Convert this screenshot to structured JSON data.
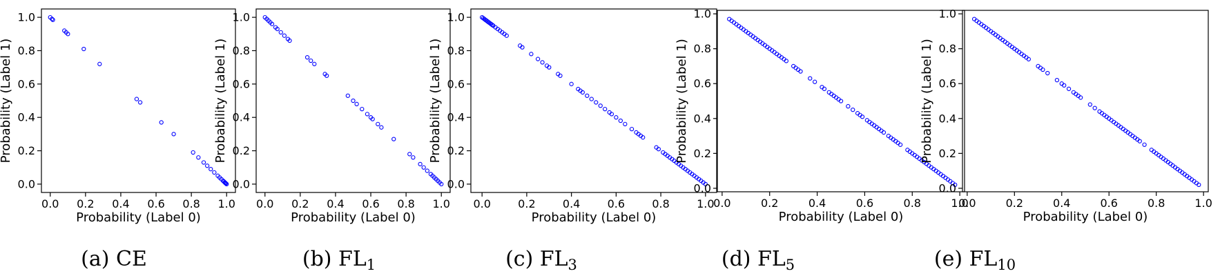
{
  "chart_data": [
    {
      "type": "scatter",
      "caption": "(a) CE",
      "xlabel": "Probability (Label 0)",
      "ylabel": "Probability (Label 1)",
      "xlim": [
        -0.05,
        1.05
      ],
      "ylim": [
        -0.05,
        1.05
      ],
      "xticks": [
        "0.0",
        "0.2",
        "0.4",
        "0.6",
        "0.8",
        "1.0"
      ],
      "yticks": [
        "0.0",
        "0.2",
        "0.4",
        "0.6",
        "0.8",
        "1.0"
      ],
      "grid": false,
      "marker_color": "#0000ff",
      "x": [
        0.0,
        0.01,
        0.015,
        0.08,
        0.09,
        0.1,
        0.19,
        0.28,
        0.49,
        0.51,
        0.63,
        0.7,
        0.81,
        0.84,
        0.87,
        0.89,
        0.91,
        0.93,
        0.95,
        0.96,
        0.97,
        0.98,
        0.985,
        0.99,
        0.993,
        0.996,
        1.0
      ],
      "y": [
        1.0,
        0.99,
        0.985,
        0.92,
        0.91,
        0.9,
        0.81,
        0.72,
        0.51,
        0.49,
        0.37,
        0.3,
        0.19,
        0.16,
        0.13,
        0.11,
        0.09,
        0.07,
        0.05,
        0.04,
        0.03,
        0.02,
        0.015,
        0.01,
        0.007,
        0.004,
        0.0
      ]
    },
    {
      "type": "scatter",
      "caption": "(b) FL",
      "caption_sub": "1",
      "xlabel": "Probability (Label 0)",
      "ylabel": "Probability (Label 1)",
      "xlim": [
        -0.05,
        1.05
      ],
      "ylim": [
        -0.05,
        1.05
      ],
      "xticks": [
        "0.0",
        "0.2",
        "0.4",
        "0.6",
        "0.8",
        "1.0"
      ],
      "yticks": [
        "0.0",
        "0.2",
        "0.4",
        "0.6",
        "0.8",
        "1.0"
      ],
      "grid": false,
      "marker_color": "#0000ff",
      "x": [
        0.0,
        0.01,
        0.02,
        0.03,
        0.04,
        0.06,
        0.07,
        0.09,
        0.11,
        0.13,
        0.14,
        0.24,
        0.26,
        0.28,
        0.34,
        0.35,
        0.47,
        0.5,
        0.52,
        0.55,
        0.58,
        0.6,
        0.61,
        0.64,
        0.66,
        0.73,
        0.82,
        0.84,
        0.88,
        0.9,
        0.92,
        0.94,
        0.95,
        0.96,
        0.97,
        0.98,
        0.99,
        1.0
      ],
      "y": [
        1.0,
        0.99,
        0.98,
        0.97,
        0.96,
        0.94,
        0.93,
        0.91,
        0.89,
        0.87,
        0.86,
        0.76,
        0.74,
        0.72,
        0.66,
        0.65,
        0.53,
        0.5,
        0.48,
        0.45,
        0.42,
        0.4,
        0.39,
        0.36,
        0.34,
        0.27,
        0.18,
        0.16,
        0.12,
        0.1,
        0.08,
        0.06,
        0.05,
        0.04,
        0.03,
        0.02,
        0.01,
        0.0
      ]
    },
    {
      "type": "scatter",
      "caption": "(c) FL",
      "caption_sub": "3",
      "xlabel": "Probability (Label 0)",
      "ylabel": "Probability (Label 1)",
      "xlim": [
        -0.05,
        1.05
      ],
      "ylim": [
        -0.05,
        1.05
      ],
      "xticks": [
        "0.0",
        "0.2",
        "0.4",
        "0.6",
        "0.8",
        "1.0"
      ],
      "yticks": [
        "0.0",
        "0.2",
        "0.4",
        "0.6",
        "0.8",
        "1.0"
      ],
      "grid": false,
      "marker_color": "#0000ff",
      "x": [
        0.0,
        0.005,
        0.01,
        0.015,
        0.02,
        0.025,
        0.03,
        0.035,
        0.04,
        0.045,
        0.05,
        0.06,
        0.07,
        0.08,
        0.09,
        0.1,
        0.11,
        0.17,
        0.18,
        0.22,
        0.25,
        0.27,
        0.29,
        0.3,
        0.34,
        0.35,
        0.4,
        0.43,
        0.44,
        0.45,
        0.47,
        0.49,
        0.51,
        0.53,
        0.55,
        0.57,
        0.58,
        0.6,
        0.62,
        0.64,
        0.67,
        0.69,
        0.7,
        0.71,
        0.72,
        0.78,
        0.79,
        0.81,
        0.82,
        0.83,
        0.84,
        0.85,
        0.86,
        0.87,
        0.88,
        0.89,
        0.9,
        0.91,
        0.92,
        0.93,
        0.94,
        0.95,
        0.96,
        0.97,
        0.98,
        0.99,
        1.0
      ],
      "y": [
        1.0,
        0.995,
        0.99,
        0.985,
        0.98,
        0.975,
        0.97,
        0.965,
        0.96,
        0.955,
        0.95,
        0.94,
        0.93,
        0.92,
        0.91,
        0.9,
        0.89,
        0.83,
        0.82,
        0.78,
        0.75,
        0.73,
        0.71,
        0.7,
        0.66,
        0.65,
        0.6,
        0.57,
        0.56,
        0.55,
        0.53,
        0.51,
        0.49,
        0.47,
        0.45,
        0.43,
        0.42,
        0.4,
        0.38,
        0.36,
        0.33,
        0.31,
        0.3,
        0.29,
        0.28,
        0.22,
        0.21,
        0.19,
        0.18,
        0.17,
        0.16,
        0.15,
        0.14,
        0.13,
        0.12,
        0.11,
        0.1,
        0.09,
        0.08,
        0.07,
        0.06,
        0.05,
        0.04,
        0.03,
        0.02,
        0.01,
        0.0
      ]
    },
    {
      "type": "scatter",
      "caption": "(d) FL",
      "caption_sub": "5",
      "xlabel": "Probability (Label 0)",
      "ylabel": "Probability (Label 1)",
      "xlim": [
        -0.02,
        1.02
      ],
      "ylim": [
        -0.02,
        1.02
      ],
      "xticks": [
        "0.0",
        "0.2",
        "0.4",
        "0.6",
        "0.8",
        "1.0"
      ],
      "yticks": [
        "0.0",
        "0.2",
        "0.4",
        "0.6",
        "0.8",
        "1.0"
      ],
      "grid": false,
      "marker_color": "#0000ff",
      "x": [
        0.03,
        0.04,
        0.05,
        0.06,
        0.07,
        0.08,
        0.09,
        0.1,
        0.11,
        0.12,
        0.13,
        0.14,
        0.15,
        0.16,
        0.17,
        0.18,
        0.19,
        0.2,
        0.21,
        0.22,
        0.23,
        0.24,
        0.25,
        0.26,
        0.27,
        0.3,
        0.31,
        0.32,
        0.33,
        0.37,
        0.39,
        0.42,
        0.43,
        0.45,
        0.46,
        0.47,
        0.48,
        0.49,
        0.5,
        0.53,
        0.55,
        0.57,
        0.58,
        0.59,
        0.61,
        0.62,
        0.63,
        0.64,
        0.65,
        0.66,
        0.67,
        0.68,
        0.7,
        0.71,
        0.72,
        0.73,
        0.74,
        0.75,
        0.78,
        0.79,
        0.8,
        0.81,
        0.82,
        0.83,
        0.84,
        0.85,
        0.86,
        0.87,
        0.88,
        0.89,
        0.9,
        0.91,
        0.92,
        0.93,
        0.94,
        0.95,
        0.96,
        0.97,
        0.98
      ],
      "y": [
        0.97,
        0.96,
        0.95,
        0.94,
        0.93,
        0.92,
        0.91,
        0.9,
        0.89,
        0.88,
        0.87,
        0.86,
        0.85,
        0.84,
        0.83,
        0.82,
        0.81,
        0.8,
        0.79,
        0.78,
        0.77,
        0.76,
        0.75,
        0.74,
        0.73,
        0.7,
        0.69,
        0.68,
        0.67,
        0.63,
        0.61,
        0.58,
        0.57,
        0.55,
        0.54,
        0.53,
        0.52,
        0.51,
        0.5,
        0.47,
        0.45,
        0.43,
        0.42,
        0.41,
        0.39,
        0.38,
        0.37,
        0.36,
        0.35,
        0.34,
        0.33,
        0.32,
        0.3,
        0.29,
        0.28,
        0.27,
        0.26,
        0.25,
        0.22,
        0.21,
        0.2,
        0.19,
        0.18,
        0.17,
        0.16,
        0.15,
        0.14,
        0.13,
        0.12,
        0.11,
        0.1,
        0.09,
        0.08,
        0.07,
        0.06,
        0.05,
        0.04,
        0.03,
        0.02
      ]
    },
    {
      "type": "scatter",
      "caption": "(e) FL",
      "caption_sub": "10",
      "xlabel": "Probability (Label 0)",
      "ylabel": "Probability (Label 1)",
      "xlim": [
        -0.02,
        1.02
      ],
      "ylim": [
        -0.02,
        1.02
      ],
      "xticks": [
        "0.0",
        "0.2",
        "0.4",
        "0.6",
        "0.8",
        "1.0"
      ],
      "yticks": [
        "0.0",
        "0.2",
        "0.4",
        "0.6",
        "0.8",
        "1.0"
      ],
      "grid": false,
      "marker_color": "#0000ff",
      "x": [
        0.03,
        0.04,
        0.05,
        0.06,
        0.07,
        0.08,
        0.09,
        0.1,
        0.11,
        0.12,
        0.13,
        0.14,
        0.15,
        0.16,
        0.17,
        0.18,
        0.19,
        0.2,
        0.21,
        0.22,
        0.23,
        0.24,
        0.25,
        0.26,
        0.3,
        0.31,
        0.32,
        0.34,
        0.38,
        0.4,
        0.41,
        0.43,
        0.45,
        0.46,
        0.47,
        0.48,
        0.52,
        0.54,
        0.56,
        0.57,
        0.58,
        0.59,
        0.6,
        0.61,
        0.62,
        0.63,
        0.64,
        0.65,
        0.66,
        0.67,
        0.68,
        0.69,
        0.7,
        0.71,
        0.72,
        0.73,
        0.75,
        0.78,
        0.79,
        0.8,
        0.81,
        0.82,
        0.83,
        0.84,
        0.85,
        0.86,
        0.87,
        0.88,
        0.89,
        0.9,
        0.91,
        0.92,
        0.93,
        0.94,
        0.95,
        0.96,
        0.97,
        0.98
      ],
      "y": [
        0.97,
        0.96,
        0.95,
        0.94,
        0.93,
        0.92,
        0.91,
        0.9,
        0.89,
        0.88,
        0.87,
        0.86,
        0.85,
        0.84,
        0.83,
        0.82,
        0.81,
        0.8,
        0.79,
        0.78,
        0.77,
        0.76,
        0.75,
        0.74,
        0.7,
        0.69,
        0.68,
        0.66,
        0.62,
        0.6,
        0.59,
        0.57,
        0.55,
        0.54,
        0.53,
        0.52,
        0.48,
        0.46,
        0.44,
        0.43,
        0.42,
        0.41,
        0.4,
        0.39,
        0.38,
        0.37,
        0.36,
        0.35,
        0.34,
        0.33,
        0.32,
        0.31,
        0.3,
        0.29,
        0.28,
        0.27,
        0.25,
        0.22,
        0.21,
        0.2,
        0.19,
        0.18,
        0.17,
        0.16,
        0.15,
        0.14,
        0.13,
        0.12,
        0.11,
        0.1,
        0.09,
        0.08,
        0.07,
        0.06,
        0.05,
        0.04,
        0.03,
        0.02
      ]
    }
  ]
}
